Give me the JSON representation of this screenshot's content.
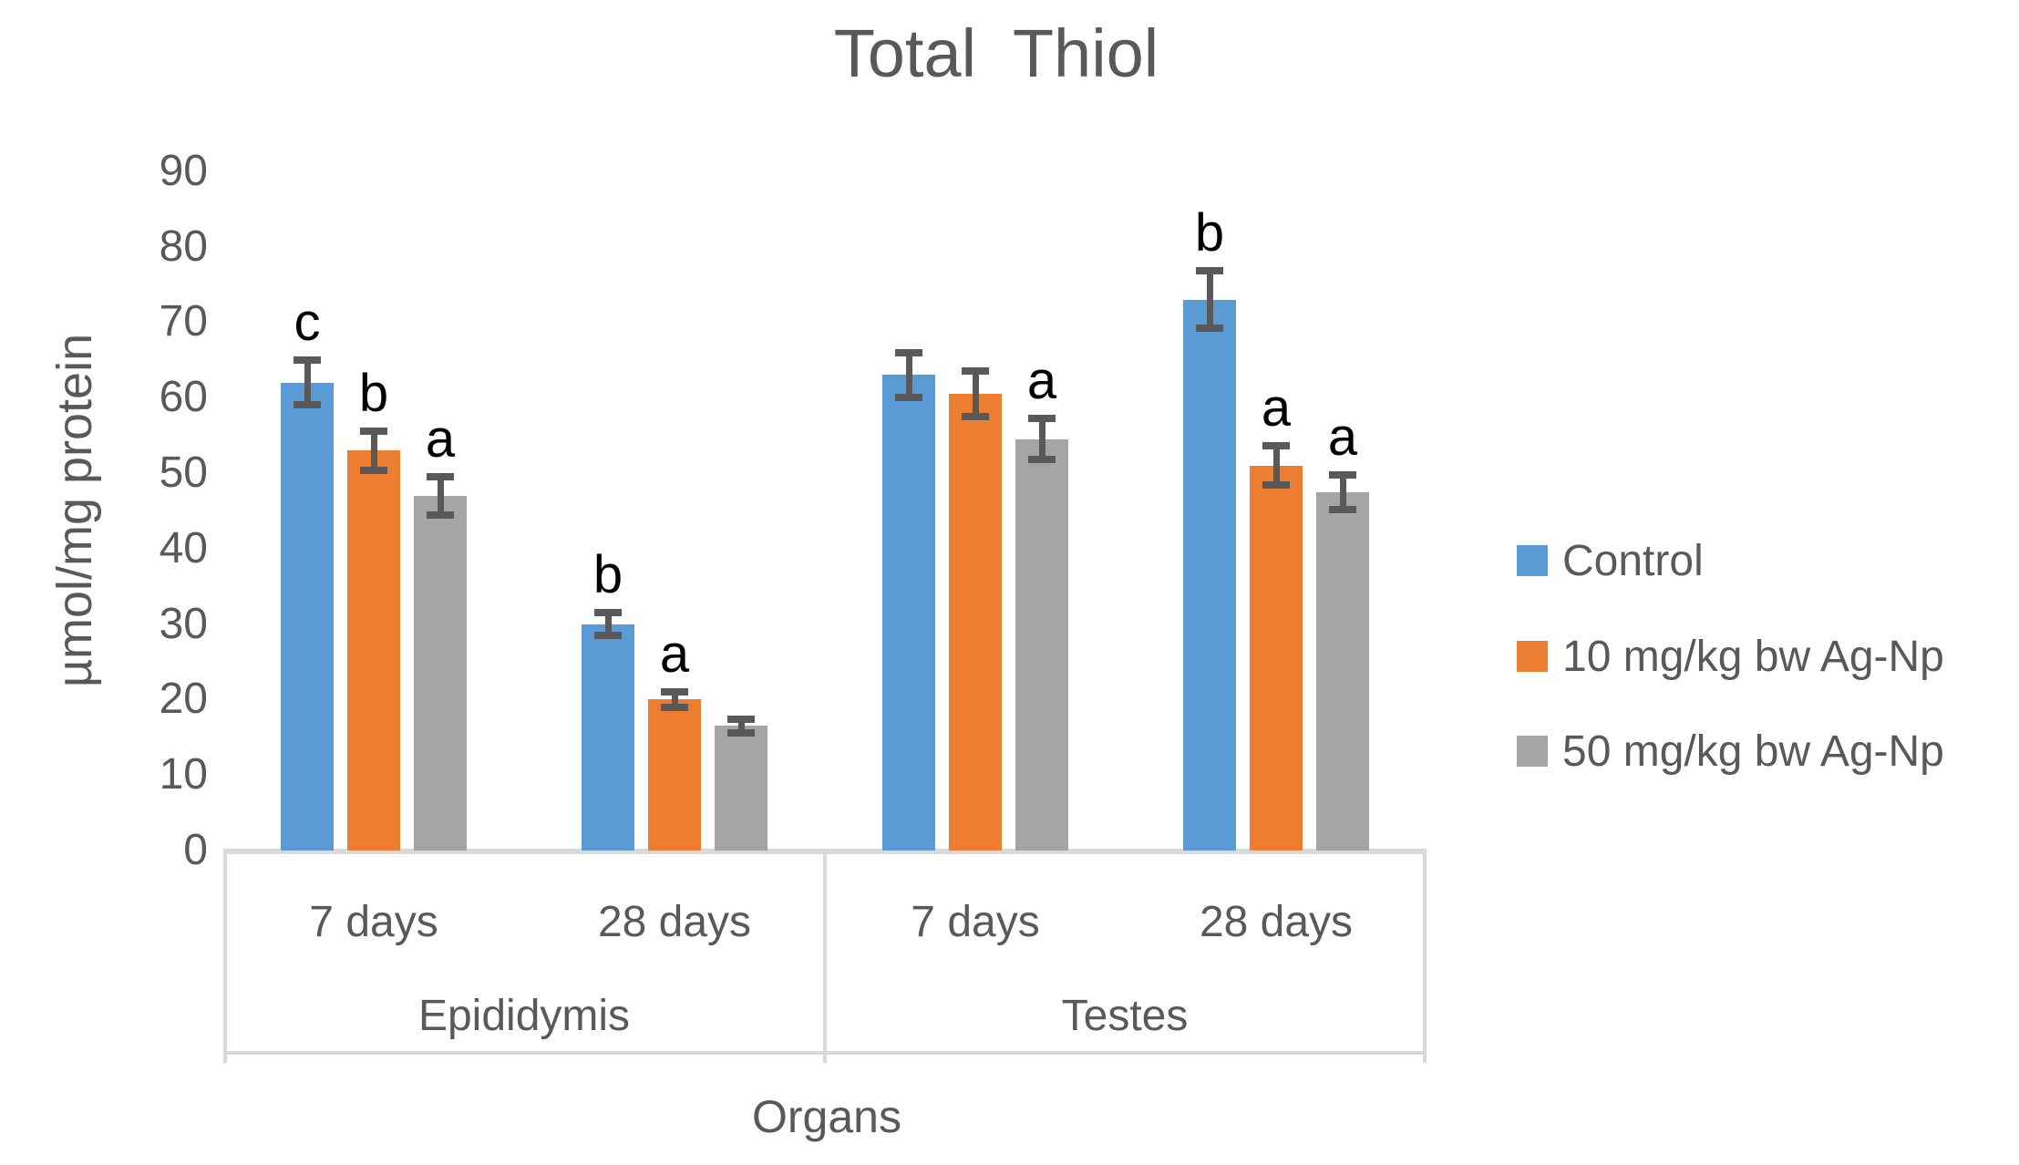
{
  "title": "Total  Thiol",
  "y_axis": {
    "title": "µmol/mg protein",
    "min": 0,
    "max": 90,
    "step": 10
  },
  "x_axis": {
    "title": "Organs"
  },
  "chart_data": {
    "type": "bar",
    "title": "Total  Thiol",
    "xlabel": "Organs",
    "ylabel": "µmol/mg protein",
    "ylim": [
      0,
      90
    ],
    "ytick_step": 10,
    "grid": false,
    "legend_position": "right",
    "organ_labels": [
      "Epididymis",
      "Testes"
    ],
    "group_labels": [
      "7 days",
      "28 days",
      "7 days",
      "28 days"
    ],
    "categories": [
      "Epididymis 7 days",
      "Epididymis 28 days",
      "Testes 7 days",
      "Testes 28 days"
    ],
    "series": [
      {
        "name": "Control",
        "color": "#5B9BD5",
        "values": [
          62,
          30,
          63,
          73
        ],
        "errors": [
          3,
          1.5,
          3,
          3.8
        ],
        "letters": [
          "c",
          "b",
          "",
          "b"
        ]
      },
      {
        "name": "10 mg/kg bw Ag-Np",
        "color": "#ED7D31",
        "values": [
          53,
          20,
          60.5,
          51
        ],
        "errors": [
          2.6,
          1,
          3,
          2.6
        ],
        "letters": [
          "b",
          "a",
          "",
          "a"
        ]
      },
      {
        "name": "50 mg/kg bw Ag-Np",
        "color": "#A5A5A5",
        "values": [
          47,
          16.5,
          54.5,
          47.5
        ],
        "errors": [
          2.5,
          0.9,
          2.7,
          2.3
        ],
        "letters": [
          "a",
          "",
          "a",
          "a"
        ]
      }
    ]
  },
  "colors": {
    "error_bar": "#595959",
    "text": "#595959",
    "letters": "#000000",
    "axis_lines": "#D9D9D9",
    "background": "#FFFFFF"
  }
}
